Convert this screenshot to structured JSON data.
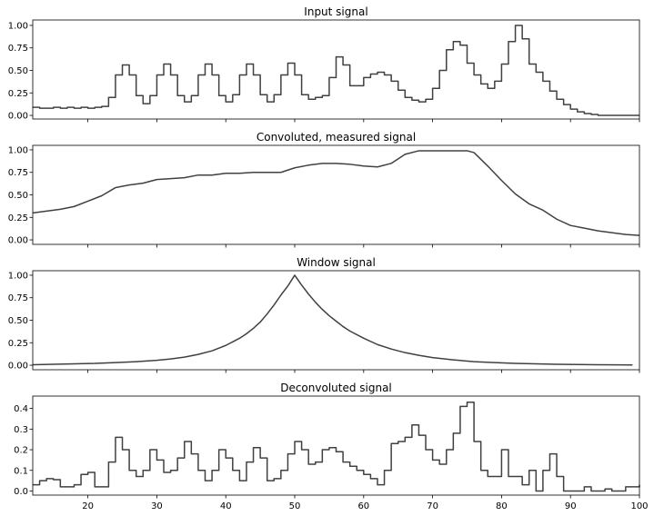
{
  "chart_data": [
    {
      "type": "line",
      "step": true,
      "title": "Input signal",
      "xlabel": "",
      "ylabel": "",
      "xlim": [
        12,
        100
      ],
      "ylim": [
        -0.04,
        1.06
      ],
      "yticks": [
        0.0,
        0.25,
        0.5,
        0.75,
        1.0
      ],
      "ytick_labels": [
        "0.00",
        "0.25",
        "0.50",
        "0.75",
        "1.00"
      ],
      "xticks": [
        20,
        30,
        40,
        50,
        60,
        70,
        80,
        90,
        100
      ],
      "xtick_labels": [],
      "color": "#404040",
      "series": [
        {
          "x": [
            12,
            13,
            14,
            15,
            16,
            17,
            18,
            19,
            20,
            21,
            22,
            23,
            24,
            25,
            26,
            27,
            28,
            29,
            30,
            31,
            32,
            33,
            34,
            35,
            36,
            37,
            38,
            39,
            40,
            41,
            42,
            43,
            44,
            45,
            46,
            47,
            48,
            49,
            50,
            51,
            52,
            53,
            54,
            55,
            56,
            57,
            58,
            59,
            60,
            61,
            62,
            63,
            64,
            65,
            66,
            67,
            68,
            69,
            70,
            71,
            72,
            73,
            74,
            75,
            76,
            77,
            78,
            79,
            80,
            81,
            82,
            83,
            84,
            85,
            86,
            87,
            88,
            89,
            90,
            91,
            92,
            93,
            94,
            95,
            96,
            97,
            98,
            99,
            100
          ],
          "y": [
            0.09,
            0.08,
            0.08,
            0.09,
            0.08,
            0.09,
            0.08,
            0.09,
            0.08,
            0.09,
            0.1,
            0.2,
            0.45,
            0.56,
            0.45,
            0.22,
            0.13,
            0.22,
            0.45,
            0.57,
            0.45,
            0.22,
            0.15,
            0.22,
            0.45,
            0.57,
            0.45,
            0.22,
            0.15,
            0.23,
            0.45,
            0.57,
            0.45,
            0.23,
            0.15,
            0.23,
            0.45,
            0.58,
            0.45,
            0.23,
            0.18,
            0.2,
            0.22,
            0.42,
            0.65,
            0.56,
            0.33,
            0.33,
            0.42,
            0.46,
            0.48,
            0.45,
            0.38,
            0.28,
            0.2,
            0.17,
            0.15,
            0.18,
            0.3,
            0.5,
            0.73,
            0.82,
            0.78,
            0.58,
            0.45,
            0.35,
            0.3,
            0.38,
            0.57,
            0.82,
            1.0,
            0.85,
            0.57,
            0.48,
            0.38,
            0.27,
            0.18,
            0.12,
            0.07,
            0.04,
            0.02,
            0.01,
            0.0,
            0.0,
            0.0,
            0.0,
            0.0,
            0.0,
            0.0
          ]
        }
      ]
    },
    {
      "type": "line",
      "title": "Convoluted, measured signal",
      "xlabel": "",
      "ylabel": "",
      "xlim": [
        12,
        100
      ],
      "ylim": [
        -0.05,
        1.05
      ],
      "yticks": [
        0.0,
        0.25,
        0.5,
        0.75,
        1.0
      ],
      "ytick_labels": [
        "0.00",
        "0.25",
        "0.50",
        "0.75",
        "1.00"
      ],
      "xticks": [
        20,
        30,
        40,
        50,
        60,
        70,
        80,
        90,
        100
      ],
      "xtick_labels": [],
      "color": "#404040",
      "series": [
        {
          "x": [
            12,
            14,
            16,
            18,
            20,
            22,
            24,
            26,
            28,
            30,
            32,
            34,
            36,
            38,
            40,
            42,
            44,
            46,
            48,
            50,
            52,
            54,
            56,
            58,
            60,
            62,
            64,
            66,
            68,
            70,
            72,
            74,
            75,
            76,
            78,
            80,
            82,
            84,
            86,
            88,
            90,
            92,
            94,
            96,
            98,
            100
          ],
          "y": [
            0.3,
            0.32,
            0.34,
            0.37,
            0.43,
            0.49,
            0.58,
            0.61,
            0.63,
            0.67,
            0.68,
            0.69,
            0.72,
            0.72,
            0.74,
            0.74,
            0.75,
            0.75,
            0.75,
            0.8,
            0.83,
            0.85,
            0.85,
            0.84,
            0.82,
            0.81,
            0.85,
            0.95,
            0.99,
            0.99,
            0.99,
            0.99,
            0.99,
            0.97,
            0.82,
            0.66,
            0.51,
            0.4,
            0.33,
            0.23,
            0.16,
            0.13,
            0.1,
            0.08,
            0.06,
            0.05
          ]
        }
      ]
    },
    {
      "type": "line",
      "title": "Window signal",
      "xlabel": "",
      "ylabel": "",
      "xlim": [
        12,
        100
      ],
      "ylim": [
        -0.05,
        1.05
      ],
      "yticks": [
        0.0,
        0.25,
        0.5,
        0.75,
        1.0
      ],
      "ytick_labels": [
        "0.00",
        "0.25",
        "0.50",
        "0.75",
        "1.00"
      ],
      "xticks": [
        20,
        30,
        40,
        50,
        60,
        70,
        80,
        90,
        100
      ],
      "xtick_labels": [],
      "color": "#404040",
      "series": [
        {
          "x": [
            12,
            15,
            18,
            21,
            24,
            27,
            30,
            32,
            34,
            36,
            38,
            40,
            42,
            43,
            44,
            45,
            46,
            47,
            48,
            49,
            50,
            51,
            52,
            53,
            54,
            55,
            56,
            57,
            58,
            60,
            62,
            64,
            66,
            68,
            70,
            73,
            76,
            79,
            82,
            85,
            88,
            91,
            94,
            97,
            99
          ],
          "y": [
            0.005,
            0.01,
            0.016,
            0.02,
            0.03,
            0.04,
            0.055,
            0.07,
            0.09,
            0.12,
            0.16,
            0.22,
            0.3,
            0.35,
            0.41,
            0.48,
            0.57,
            0.67,
            0.78,
            0.88,
            1.0,
            0.89,
            0.79,
            0.7,
            0.62,
            0.55,
            0.49,
            0.43,
            0.38,
            0.3,
            0.23,
            0.18,
            0.14,
            0.11,
            0.085,
            0.06,
            0.04,
            0.03,
            0.02,
            0.015,
            0.01,
            0.008,
            0.006,
            0.004,
            0.003
          ]
        }
      ]
    },
    {
      "type": "line",
      "step": true,
      "title": "Deconvoluted signal",
      "xlabel": "",
      "ylabel": "",
      "xlim": [
        12,
        100
      ],
      "ylim": [
        -0.02,
        0.46
      ],
      "yticks": [
        0.0,
        0.1,
        0.2,
        0.3,
        0.4
      ],
      "ytick_labels": [
        "0.0",
        "0.1",
        "0.2",
        "0.3",
        "0.4"
      ],
      "xticks": [
        20,
        30,
        40,
        50,
        60,
        70,
        80,
        90,
        100
      ],
      "xtick_labels": [
        "20",
        "30",
        "40",
        "50",
        "60",
        "70",
        "80",
        "90",
        "100"
      ],
      "color": "#404040",
      "series": [
        {
          "x": [
            12,
            13,
            14,
            15,
            16,
            17,
            18,
            19,
            20,
            21,
            22,
            23,
            24,
            25,
            26,
            27,
            28,
            29,
            30,
            31,
            32,
            33,
            34,
            35,
            36,
            37,
            38,
            39,
            40,
            41,
            42,
            43,
            44,
            45,
            46,
            47,
            48,
            49,
            50,
            51,
            52,
            53,
            54,
            55,
            56,
            57,
            58,
            59,
            60,
            61,
            62,
            63,
            64,
            65,
            66,
            67,
            68,
            69,
            70,
            71,
            72,
            73,
            74,
            75,
            76,
            77,
            78,
            79,
            80,
            81,
            82,
            83,
            84,
            85,
            86,
            87,
            88,
            89,
            90,
            91,
            92,
            93,
            94,
            95,
            96,
            97,
            98,
            99,
            100
          ],
          "y": [
            0.03,
            0.05,
            0.06,
            0.055,
            0.02,
            0.02,
            0.03,
            0.08,
            0.09,
            0.02,
            0.02,
            0.14,
            0.26,
            0.2,
            0.1,
            0.07,
            0.1,
            0.2,
            0.15,
            0.09,
            0.1,
            0.16,
            0.24,
            0.18,
            0.1,
            0.05,
            0.1,
            0.2,
            0.16,
            0.1,
            0.05,
            0.14,
            0.21,
            0.16,
            0.05,
            0.06,
            0.1,
            0.18,
            0.24,
            0.2,
            0.13,
            0.14,
            0.2,
            0.21,
            0.19,
            0.14,
            0.12,
            0.1,
            0.08,
            0.06,
            0.03,
            0.1,
            0.23,
            0.24,
            0.26,
            0.32,
            0.27,
            0.2,
            0.15,
            0.13,
            0.2,
            0.28,
            0.41,
            0.43,
            0.24,
            0.1,
            0.07,
            0.07,
            0.2,
            0.07,
            0.07,
            0.03,
            0.1,
            0.0,
            0.1,
            0.18,
            0.07,
            0.0,
            0.0,
            0.0,
            0.02,
            0.0,
            0.0,
            0.01,
            0.0,
            0.0,
            0.02,
            0.02,
            0.03
          ]
        }
      ]
    }
  ]
}
